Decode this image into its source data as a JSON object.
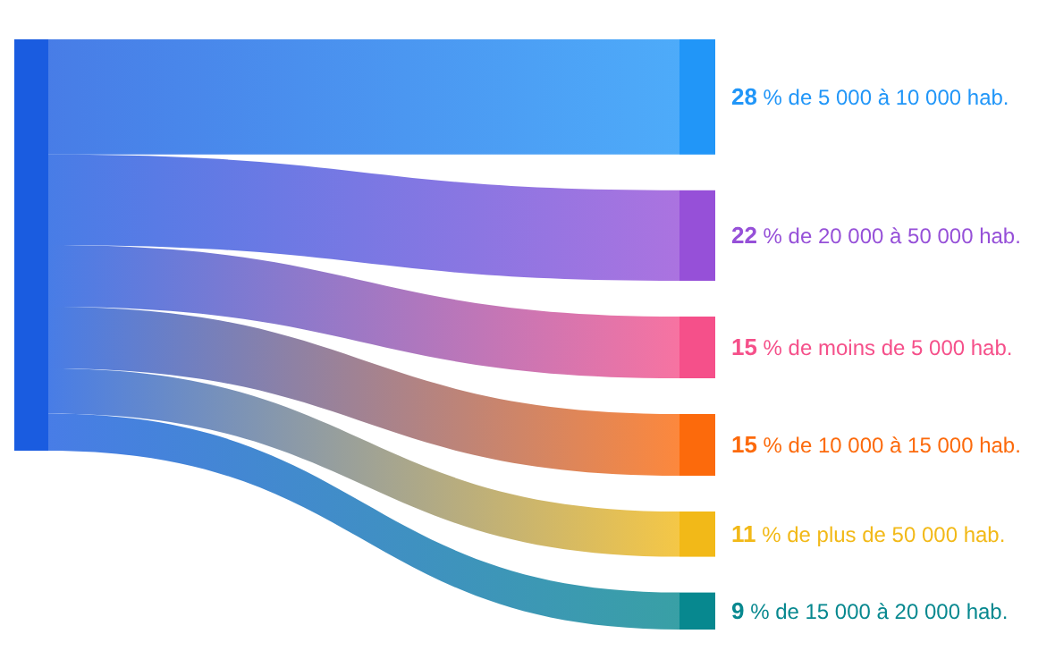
{
  "chart_data": {
    "type": "other",
    "color": "#1a5ce0",
    "categories": [
      "% de 5 000 à 10 000 hab.",
      "% de 20 000 à 50 000 hab.",
      "% de moins de 5 000 hab.",
      "% de 10 000 à 15 000 hab.",
      "% de plus de 50 000 hab.",
      "% de 15 000 à 20 000 hab."
    ],
    "values": [
      28,
      22,
      15,
      15,
      11,
      9
    ],
    "colors": [
      "#2196f8",
      "#9650d8",
      "#f5508a",
      "#fc6a0c",
      "#f2b918",
      "#07888f"
    ],
    "data_labels": true
  }
}
